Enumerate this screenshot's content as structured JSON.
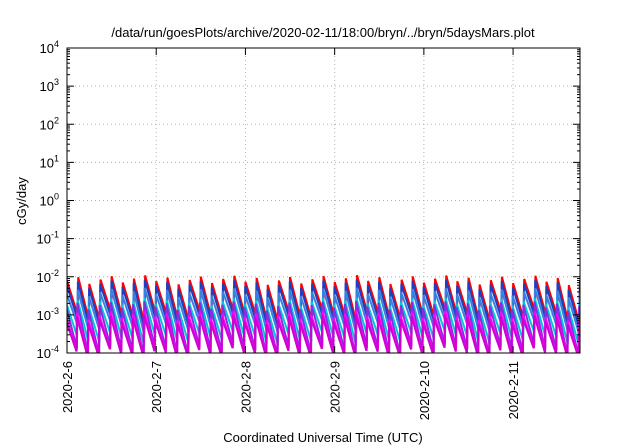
{
  "chart_data": {
    "type": "line",
    "title": "/data/run/goesPlots/archive/2020-02-11/18:00/bryn/../bryn/5daysMars.plot",
    "xlabel": "Coordinated Universal Time (UTC)",
    "ylabel": "cGy/day",
    "yscale": "log",
    "ylim": [
      0.0001,
      10000
    ],
    "y_ticks": [
      {
        "value": 0.0001,
        "mantissa": "10",
        "exp": "-4"
      },
      {
        "value": 0.001,
        "mantissa": "10",
        "exp": "-3"
      },
      {
        "value": 0.01,
        "mantissa": "10",
        "exp": "-2"
      },
      {
        "value": 0.1,
        "mantissa": "10",
        "exp": "-1"
      },
      {
        "value": 1,
        "mantissa": "10",
        "exp": "0"
      },
      {
        "value": 10,
        "mantissa": "10",
        "exp": "1"
      },
      {
        "value": 100,
        "mantissa": "10",
        "exp": "2"
      },
      {
        "value": 1000,
        "mantissa": "10",
        "exp": "3"
      },
      {
        "value": 10000,
        "mantissa": "10",
        "exp": "4"
      }
    ],
    "x_ticks": [
      {
        "value": "2020-02-06",
        "label": "2020-2-6"
      },
      {
        "value": "2020-02-07",
        "label": "2020-2-7"
      },
      {
        "value": "2020-02-08",
        "label": "2020-2-8"
      },
      {
        "value": "2020-02-09",
        "label": "2020-2-9"
      },
      {
        "value": "2020-02-10",
        "label": "2020-2-10"
      },
      {
        "value": "2020-02-11",
        "label": "2020-2-11"
      }
    ],
    "xlim": [
      "2020-02-06T00:00",
      "2020-02-11T18:00"
    ],
    "grid": true,
    "series": [
      {
        "color": "#ff0000",
        "peak": 0.0085,
        "trough": 0.0009,
        "phase": 0.0
      },
      {
        "color": "#1f3fbf",
        "peak": 0.0065,
        "trough": 0.0007,
        "phase": 0.02
      },
      {
        "color": "#3a7fe0",
        "peak": 0.004,
        "trough": 0.0005,
        "phase": 0.04
      },
      {
        "color": "#00c8d8",
        "peak": 0.0022,
        "trough": 0.00025,
        "phase": 0.06
      },
      {
        "color": "#8a2be2",
        "peak": 0.0018,
        "trough": 0.00012,
        "phase": 0.08
      },
      {
        "color": "#ff00ff",
        "peak": 0.001,
        "trough": 0.0001,
        "phase": 0.1
      },
      {
        "color": "#d000d0",
        "peak": 0.0008,
        "trough": 0.0001,
        "phase": 0.12
      }
    ],
    "period_hours": 3.0
  }
}
